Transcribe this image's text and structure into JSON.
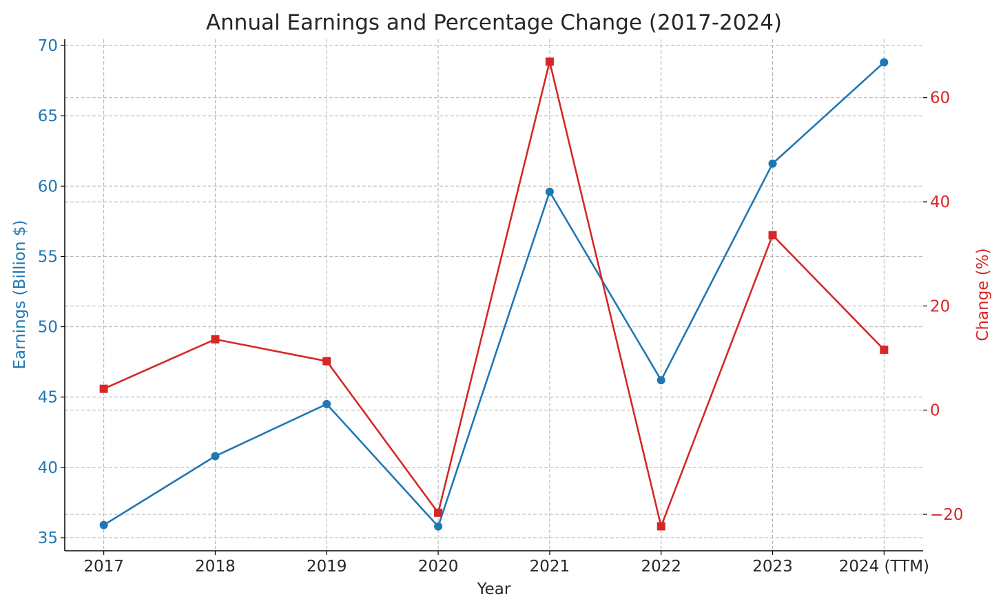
{
  "chart_data": {
    "type": "line",
    "title": "Annual Earnings and Percentage Change (2017-2024)",
    "xlabel": "Year",
    "categories": [
      "2017",
      "2018",
      "2019",
      "2020",
      "2021",
      "2022",
      "2023",
      "2024 (TTM)"
    ],
    "series": [
      {
        "axis": "left",
        "marker": "circle",
        "color": "#1f77b4",
        "values": [
          35.9,
          40.8,
          44.5,
          35.8,
          59.6,
          46.2,
          61.6,
          68.8
        ]
      },
      {
        "axis": "right",
        "marker": "square",
        "color": "#d62728",
        "values": [
          4.1,
          13.6,
          9.4,
          -19.7,
          66.9,
          -22.3,
          33.6,
          11.6
        ]
      }
    ],
    "y_left": {
      "label": "Earnings (Billion $)",
      "ylim": [
        34.07,
        70.44
      ],
      "ticks": [
        35,
        40,
        45,
        50,
        55,
        60,
        65,
        70
      ],
      "color": "#1f77b4"
    },
    "y_right": {
      "label": "Change (%)",
      "ylim": [
        -27,
        71.2
      ],
      "ticks": [
        -20,
        0,
        20,
        40,
        60
      ],
      "tick_labels": [
        "−20",
        "0",
        "20",
        "40",
        "60"
      ],
      "color": "#d62728"
    },
    "grid": true,
    "grid_style": "dashed"
  }
}
